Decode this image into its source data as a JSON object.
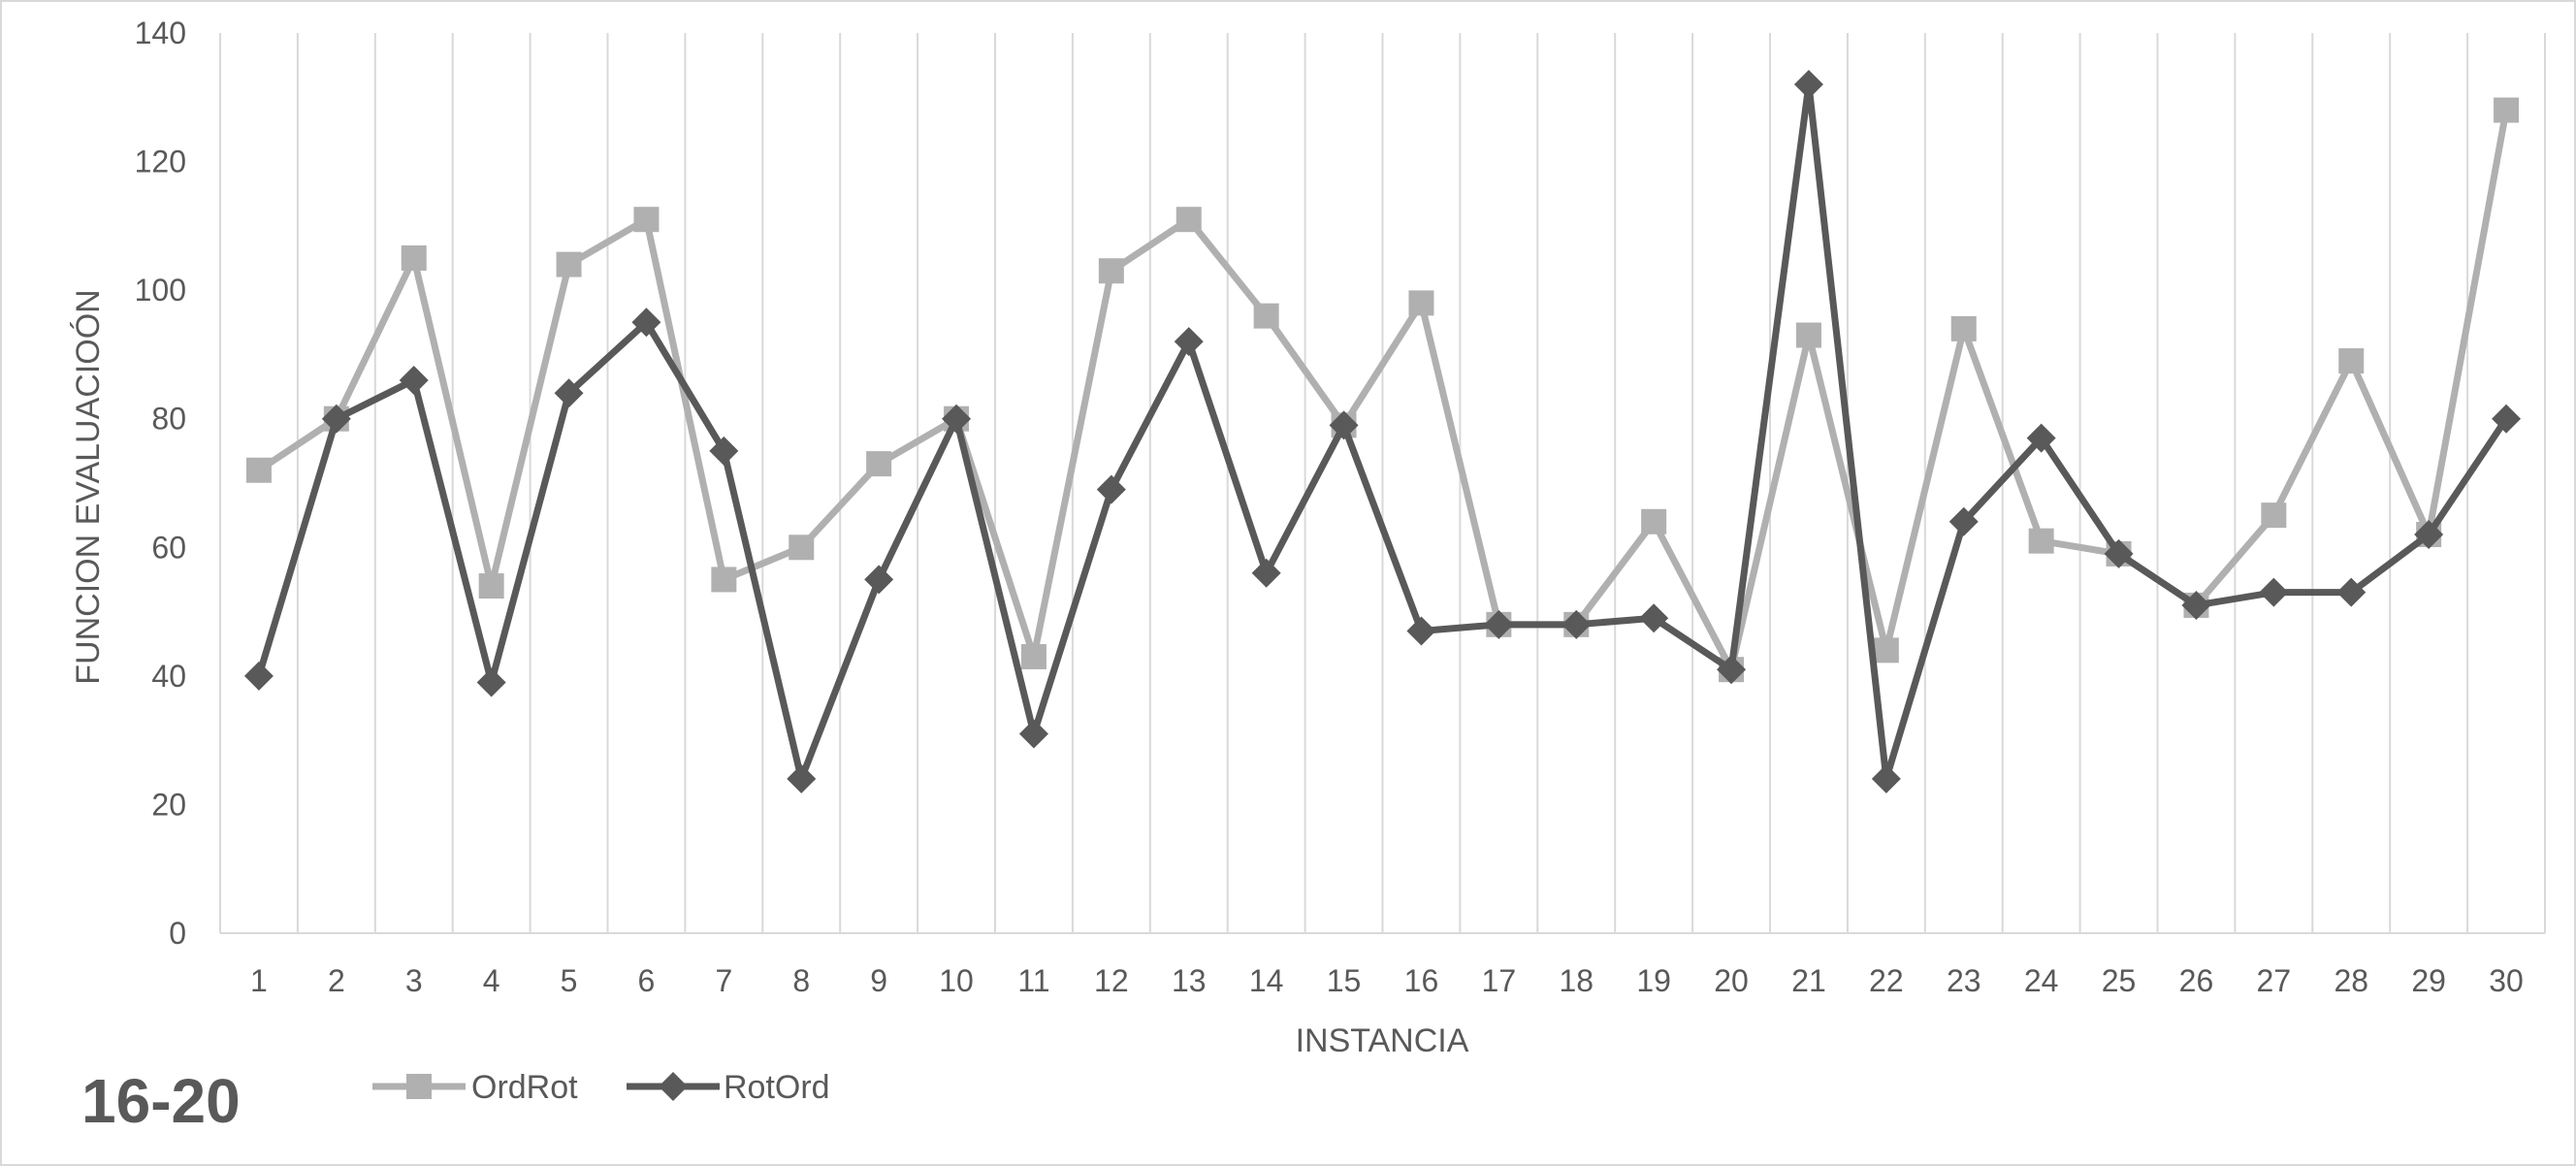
{
  "chart_data": {
    "type": "line",
    "title": "",
    "corner_label": "16-20",
    "xlabel": "INSTANCIA",
    "ylabel": "FUNCION EVALUACIOÓN",
    "ylim": [
      0,
      140
    ],
    "yticks": [
      0,
      20,
      40,
      60,
      80,
      100,
      120,
      140
    ],
    "grid": "vertical",
    "legend_position": "bottom-left",
    "categories": [
      "1",
      "2",
      "3",
      "4",
      "5",
      "6",
      "7",
      "8",
      "9",
      "10",
      "11",
      "12",
      "13",
      "14",
      "15",
      "16",
      "17",
      "18",
      "19",
      "20",
      "21",
      "22",
      "23",
      "24",
      "25",
      "26",
      "27",
      "28",
      "29",
      "30"
    ],
    "series": [
      {
        "name": "OrdRot",
        "marker": "square",
        "color": "#b0b0b0",
        "values": [
          72,
          80,
          105,
          54,
          104,
          111,
          55,
          60,
          73,
          80,
          43,
          103,
          111,
          96,
          79,
          98,
          48,
          48,
          64,
          41,
          93,
          44,
          94,
          61,
          59,
          51,
          65,
          89,
          62,
          128
        ]
      },
      {
        "name": "RotOrd",
        "marker": "diamond",
        "color": "#595959",
        "values": [
          40,
          80,
          86,
          39,
          84,
          95,
          75,
          24,
          55,
          80,
          31,
          69,
          92,
          56,
          79,
          47,
          48,
          48,
          49,
          41,
          132,
          24,
          64,
          77,
          59,
          51,
          53,
          53,
          62,
          80
        ]
      }
    ]
  }
}
